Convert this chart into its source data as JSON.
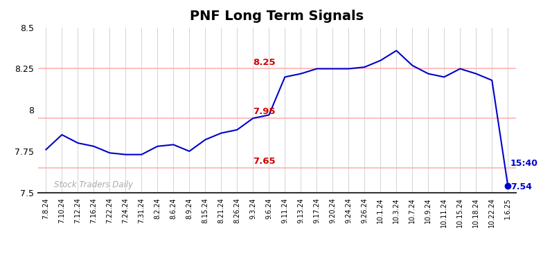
{
  "title": "PNF Long Term Signals",
  "watermark": "Stock Traders Daily",
  "x_labels": [
    "7.8.24",
    "7.10.24",
    "7.12.24",
    "7.16.24",
    "7.22.24",
    "7.24.24",
    "7.31.24",
    "8.2.24",
    "8.6.24",
    "8.9.24",
    "8.15.24",
    "8.21.24",
    "8.26.24",
    "9.3.24",
    "9.6.24",
    "9.11.24",
    "9.13.24",
    "9.17.24",
    "9.20.24",
    "9.24.24",
    "9.26.24",
    "10.1.24",
    "10.3.24",
    "10.7.24",
    "10.9.24",
    "10.11.24",
    "10.15.24",
    "10.18.24",
    "10.22.24",
    "1.6.25"
  ],
  "y_values": [
    7.76,
    7.85,
    7.8,
    7.78,
    7.74,
    7.73,
    7.73,
    7.78,
    7.79,
    7.75,
    7.82,
    7.86,
    7.88,
    7.95,
    7.97,
    8.2,
    8.22,
    8.25,
    8.25,
    8.25,
    8.26,
    8.3,
    8.36,
    8.27,
    8.22,
    8.2,
    8.25,
    8.22,
    8.18,
    7.54
  ],
  "hlines": [
    7.65,
    7.95,
    8.25
  ],
  "hline_color": "#ffb3b3",
  "label_color": "#cc0000",
  "line_color": "#0000cc",
  "dot_color": "#0000cc",
  "grid_color": "#cccccc",
  "ylim": [
    7.5,
    8.5
  ],
  "yticks": [
    7.5,
    7.75,
    8.0,
    8.25,
    8.5
  ],
  "ytick_labels": [
    "7.5",
    "7.75",
    "8",
    "8.25",
    "8.5"
  ],
  "annotation_time": "15:40",
  "annotation_value": "7.54",
  "watermark_color": "#aaaaaa",
  "background_color": "#ffffff",
  "hline_label_idx": 13,
  "hline_label_offsets": [
    0.012,
    0.012,
    0.012
  ]
}
